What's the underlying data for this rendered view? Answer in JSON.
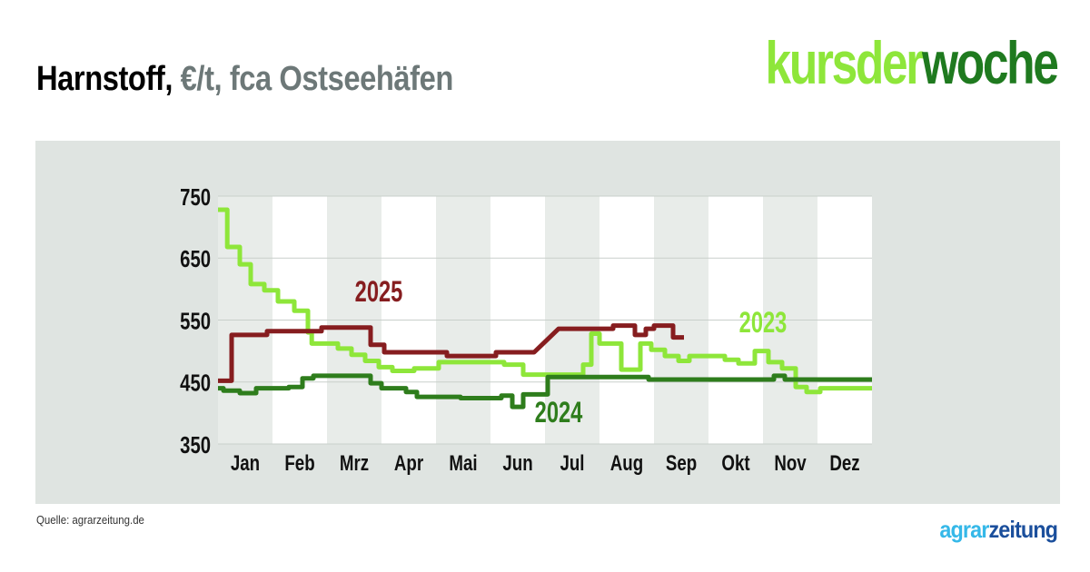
{
  "header": {
    "title_main": "Harnstoff,",
    "title_sub": "€/t, fca Ostseehäfen"
  },
  "brand": {
    "part1": "kursder",
    "part2": "woche"
  },
  "footer": {
    "source": "Quelle: agrarzeitung.de",
    "logo_part1": "agrar",
    "logo_part2": "zeitung"
  },
  "chart_data": {
    "type": "line",
    "title": "Harnstoff, €/t, fca Ostseehäfen",
    "xlabel": "",
    "ylabel": "",
    "ylim": [
      350,
      750
    ],
    "yticks": [
      350,
      450,
      550,
      650,
      750
    ],
    "xlim": [
      0,
      12
    ],
    "categories": [
      "Jan",
      "Feb",
      "Mrz",
      "Apr",
      "Mai",
      "Jun",
      "Jul",
      "Aug",
      "Sep",
      "Okt",
      "Nov",
      "Dez"
    ],
    "grid": "horizontal",
    "series": [
      {
        "name": "2023",
        "color": "#8ee63a",
        "points": [
          [
            0,
            728
          ],
          [
            0.17,
            728
          ],
          [
            0.17,
            668
          ],
          [
            0.4,
            668
          ],
          [
            0.4,
            640
          ],
          [
            0.6,
            640
          ],
          [
            0.6,
            608
          ],
          [
            0.85,
            608
          ],
          [
            0.85,
            598
          ],
          [
            1.1,
            598
          ],
          [
            1.1,
            580
          ],
          [
            1.4,
            580
          ],
          [
            1.4,
            565
          ],
          [
            1.65,
            565
          ],
          [
            1.65,
            530
          ],
          [
            1.72,
            530
          ],
          [
            1.72,
            512
          ],
          [
            2.2,
            512
          ],
          [
            2.2,
            504
          ],
          [
            2.45,
            504
          ],
          [
            2.45,
            494
          ],
          [
            2.7,
            494
          ],
          [
            2.7,
            484
          ],
          [
            2.95,
            484
          ],
          [
            2.95,
            474
          ],
          [
            3.2,
            474
          ],
          [
            3.2,
            468
          ],
          [
            3.6,
            468
          ],
          [
            3.6,
            472
          ],
          [
            4.05,
            472
          ],
          [
            4.05,
            482
          ],
          [
            5.25,
            482
          ],
          [
            5.25,
            478
          ],
          [
            5.6,
            478
          ],
          [
            5.6,
            462
          ],
          [
            6.7,
            462
          ],
          [
            6.7,
            478
          ],
          [
            6.85,
            478
          ],
          [
            6.85,
            528
          ],
          [
            7.0,
            528
          ],
          [
            7.0,
            512
          ],
          [
            7.4,
            512
          ],
          [
            7.4,
            470
          ],
          [
            7.75,
            470
          ],
          [
            7.75,
            512
          ],
          [
            7.95,
            512
          ],
          [
            7.95,
            502
          ],
          [
            8.2,
            502
          ],
          [
            8.2,
            492
          ],
          [
            8.45,
            492
          ],
          [
            8.45,
            484
          ],
          [
            8.65,
            484
          ],
          [
            8.65,
            492
          ],
          [
            9.3,
            492
          ],
          [
            9.3,
            486
          ],
          [
            9.55,
            486
          ],
          [
            9.55,
            480
          ],
          [
            9.85,
            480
          ],
          [
            9.85,
            500
          ],
          [
            10.1,
            500
          ],
          [
            10.1,
            482
          ],
          [
            10.35,
            482
          ],
          [
            10.35,
            472
          ],
          [
            10.6,
            472
          ],
          [
            10.6,
            442
          ],
          [
            10.8,
            442
          ],
          [
            10.8,
            434
          ],
          [
            11.05,
            434
          ],
          [
            11.05,
            440
          ],
          [
            12,
            440
          ]
        ]
      },
      {
        "name": "2024",
        "color": "#2e7d1c",
        "points": [
          [
            0,
            440
          ],
          [
            0.1,
            440
          ],
          [
            0.1,
            436
          ],
          [
            0.4,
            436
          ],
          [
            0.4,
            432
          ],
          [
            0.7,
            432
          ],
          [
            0.7,
            440
          ],
          [
            1.3,
            440
          ],
          [
            1.3,
            442
          ],
          [
            1.55,
            442
          ],
          [
            1.55,
            456
          ],
          [
            1.75,
            456
          ],
          [
            1.75,
            460
          ],
          [
            2.8,
            460
          ],
          [
            2.8,
            448
          ],
          [
            3.0,
            448
          ],
          [
            3.0,
            440
          ],
          [
            3.45,
            440
          ],
          [
            3.45,
            434
          ],
          [
            3.65,
            434
          ],
          [
            3.65,
            426
          ],
          [
            4.45,
            426
          ],
          [
            4.45,
            424
          ],
          [
            5.2,
            424
          ],
          [
            5.2,
            428
          ],
          [
            5.4,
            428
          ],
          [
            5.4,
            410
          ],
          [
            5.6,
            410
          ],
          [
            5.6,
            430
          ],
          [
            6.05,
            430
          ],
          [
            6.05,
            458
          ],
          [
            7.9,
            458
          ],
          [
            7.9,
            454
          ],
          [
            10.2,
            454
          ],
          [
            10.2,
            460
          ],
          [
            10.4,
            460
          ],
          [
            10.4,
            454
          ],
          [
            12,
            454
          ]
        ]
      },
      {
        "name": "2025",
        "color": "#861d1f",
        "points": [
          [
            0,
            452
          ],
          [
            0.25,
            452
          ],
          [
            0.25,
            526
          ],
          [
            0.9,
            526
          ],
          [
            0.9,
            532
          ],
          [
            1.9,
            532
          ],
          [
            1.9,
            538
          ],
          [
            2.8,
            538
          ],
          [
            2.8,
            510
          ],
          [
            3.05,
            510
          ],
          [
            3.05,
            498
          ],
          [
            4.2,
            498
          ],
          [
            4.2,
            492
          ],
          [
            5.1,
            492
          ],
          [
            5.1,
            498
          ],
          [
            5.8,
            498
          ],
          [
            6.25,
            536
          ],
          [
            7.25,
            536
          ],
          [
            7.25,
            541
          ],
          [
            7.65,
            541
          ],
          [
            7.65,
            526
          ],
          [
            7.85,
            526
          ],
          [
            7.85,
            536
          ],
          [
            8.0,
            536
          ],
          [
            8.0,
            541
          ],
          [
            8.35,
            541
          ],
          [
            8.35,
            522
          ],
          [
            8.55,
            522
          ]
        ]
      }
    ],
    "labels": [
      {
        "text": "2025",
        "series": "2025",
        "x": 2.95,
        "y": 580
      },
      {
        "text": "2023",
        "series": "2023",
        "x": 10.0,
        "y": 530
      },
      {
        "text": "2024",
        "series": "2024",
        "x": 6.25,
        "y": 385
      }
    ]
  }
}
